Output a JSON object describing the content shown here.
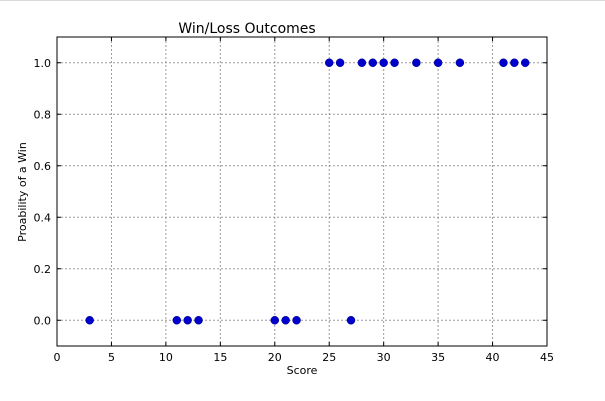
{
  "chart_data": {
    "type": "scatter",
    "title": "Win/Loss Outcomes",
    "xlabel": "Score",
    "ylabel": "Proability of a Win",
    "xlim": [
      0,
      45
    ],
    "ylim": [
      -0.1,
      1.1
    ],
    "x_ticks": [
      0,
      5,
      10,
      15,
      20,
      25,
      30,
      35,
      40,
      45
    ],
    "x_tick_labels": [
      "0",
      "5",
      "10",
      "15",
      "20",
      "25",
      "30",
      "35",
      "40",
      "45"
    ],
    "y_ticks": [
      0.0,
      0.2,
      0.4,
      0.6,
      0.8,
      1.0
    ],
    "y_tick_labels": [
      "0.0",
      "0.2",
      "0.4",
      "0.6",
      "0.8",
      "1.0"
    ],
    "grid": true,
    "marker_color": "#0000cc",
    "series": [
      {
        "points": [
          {
            "x": 3,
            "y": 0
          },
          {
            "x": 11,
            "y": 0
          },
          {
            "x": 12,
            "y": 0
          },
          {
            "x": 13,
            "y": 0
          },
          {
            "x": 20,
            "y": 0
          },
          {
            "x": 21,
            "y": 0
          },
          {
            "x": 22,
            "y": 0
          },
          {
            "x": 27,
            "y": 0
          },
          {
            "x": 25,
            "y": 1
          },
          {
            "x": 26,
            "y": 1
          },
          {
            "x": 28,
            "y": 1
          },
          {
            "x": 29,
            "y": 1
          },
          {
            "x": 30,
            "y": 1
          },
          {
            "x": 31,
            "y": 1
          },
          {
            "x": 33,
            "y": 1
          },
          {
            "x": 35,
            "y": 1
          },
          {
            "x": 37,
            "y": 1
          },
          {
            "x": 41,
            "y": 1
          },
          {
            "x": 42,
            "y": 1
          },
          {
            "x": 43,
            "y": 1
          }
        ]
      }
    ]
  }
}
